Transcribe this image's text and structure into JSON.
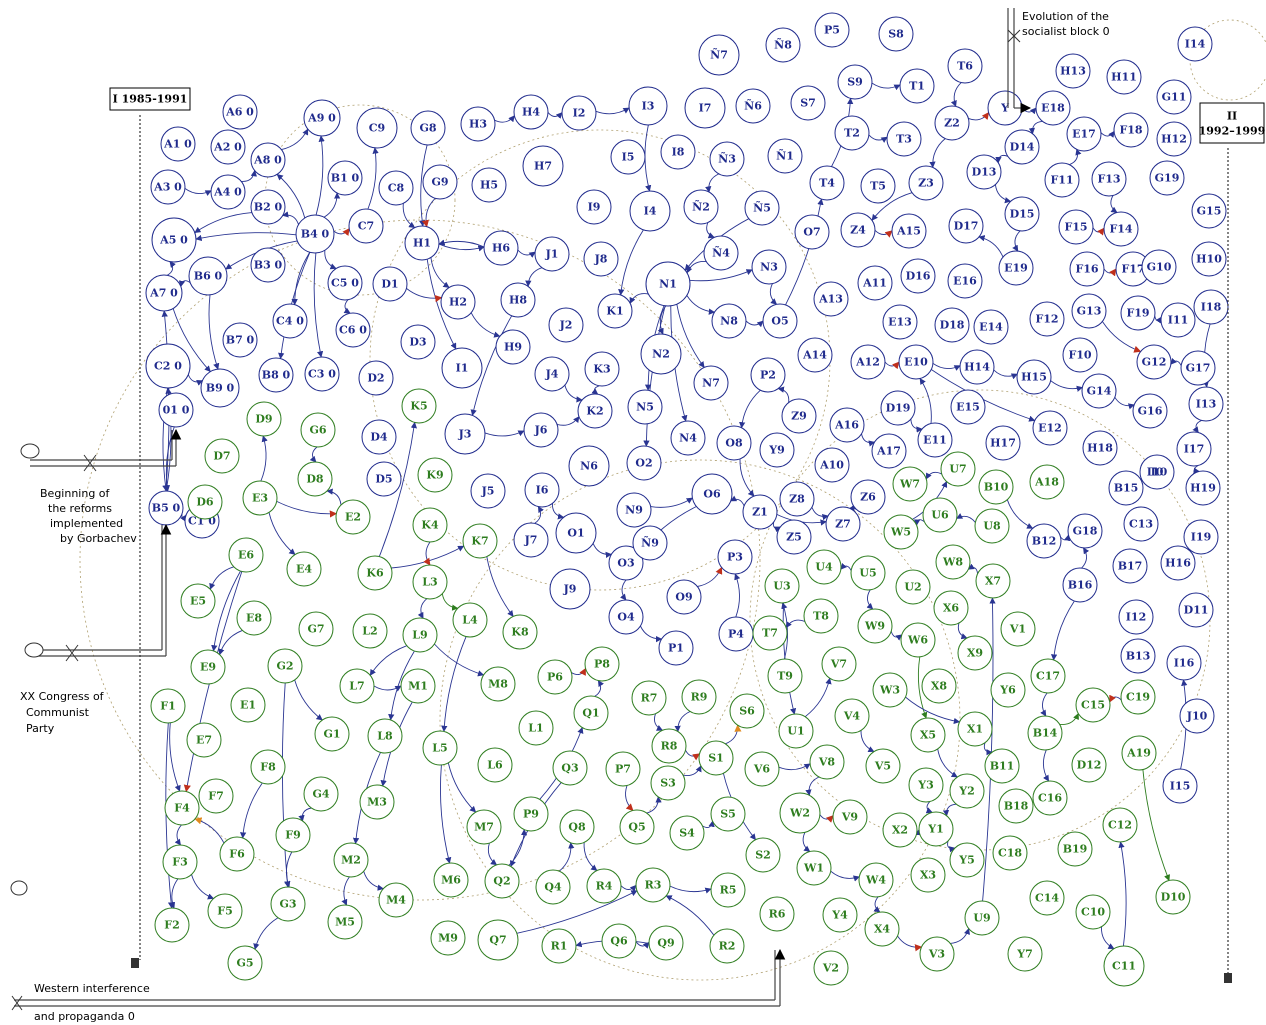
{
  "colors": {
    "blue": "#1f2a8c",
    "green": "#2e7d1f",
    "edgeBlue": "#2a3592",
    "dotted": "#8a7a55"
  },
  "boxes": {
    "period1": "I 1985-1991",
    "period2a": "II",
    "period2b": "1992–1999"
  },
  "captions": {
    "socialist": [
      "Evolution of the",
      "socialist block  0"
    ],
    "gorbachev": [
      "Beginning of",
      "the reforms",
      "implemented",
      "by Gorbachev"
    ],
    "congress": [
      "XX Congress of",
      "Communist",
      "Party"
    ],
    "western": [
      "Western interference",
      "and propaganda  0"
    ]
  },
  "blueNodes": [
    "A1 0",
    "A2 0",
    "A3 0",
    "A4 0",
    "A5 0",
    "A6 0",
    "A7 0",
    "A8 0",
    "A9 0",
    "B1 0",
    "B2 0",
    "B3 0",
    "B4 0",
    "B5 0",
    "B6 0",
    "B7 0",
    "B8 0",
    "B9 0",
    "C1 0",
    "C2 0",
    "C3 0",
    "C4 0",
    "C5 0",
    "C6 0",
    "C7",
    "C8",
    "C9",
    "D1",
    "D2",
    "D3",
    "D4",
    "D5",
    "G8",
    "G9",
    "H1",
    "H2",
    "H3",
    "H4",
    "H5",
    "H6",
    "H7",
    "H8",
    "H9",
    "I1",
    "I2",
    "I3",
    "I4",
    "I5",
    "I6",
    "I7",
    "I8",
    "I9",
    "J1",
    "J2",
    "J3",
    "J4",
    "J5",
    "J6",
    "J7",
    "J8",
    "J9",
    "K1",
    "K2",
    "K3",
    "N1",
    "N2",
    "N3",
    "N4",
    "N5",
    "N6",
    "N7",
    "N8",
    "N9",
    "O1",
    "O2",
    "O3",
    "O4",
    "O5",
    "O6",
    "O7",
    "O8",
    "O9",
    "P1",
    "P2",
    "P3",
    "P4",
    "P5",
    "S7",
    "S8",
    "S9",
    "T1",
    "T2",
    "T3",
    "T4",
    "T5",
    "T6",
    "Y",
    "Y9",
    "Z1",
    "Z2",
    "Z3",
    "Z4",
    "Z5",
    "Z6",
    "Z7",
    "Z8",
    "Z9",
    "Ñ1",
    "Ñ2",
    "Ñ3",
    "Ñ4",
    "Ñ5",
    "Ñ6",
    "Ñ7",
    "Ñ8",
    "Ñ9",
    "A10",
    "A11",
    "A12",
    "A13",
    "A14",
    "A15",
    "A16",
    "A17",
    "D13",
    "D14",
    "D15",
    "D16",
    "D17",
    "D18",
    "D19",
    "E10",
    "E11",
    "E12",
    "E13",
    "E14",
    "E15",
    "E16",
    "E17",
    "E18",
    "E19",
    "F10",
    "F11",
    "F12",
    "F13",
    "F14",
    "F15",
    "F16",
    "F17",
    "F18",
    "F19",
    "G10",
    "G11",
    "G12",
    "G13",
    "G14",
    "G15",
    "G16",
    "G17",
    "G18",
    "G19",
    "H10",
    "H11",
    "H12",
    "H13",
    "H14",
    "H15",
    "H16",
    "H17",
    "H18",
    "H19",
    "I10",
    "I11",
    "I12",
    "I13",
    "I14",
    "I15",
    "I16",
    "I17",
    "I18",
    "I19",
    "J10",
    "B12",
    "B13",
    "B15",
    "B16",
    "B17",
    "C13",
    "D11",
    "I0",
    "01 0"
  ],
  "greenNodes": [
    "D6",
    "D7",
    "D8",
    "D9",
    "E1",
    "E2",
    "E3",
    "E4",
    "E5",
    "E6",
    "E7",
    "E8",
    "E9",
    "F1",
    "F2",
    "F3",
    "F4",
    "F5",
    "F6",
    "F7",
    "F8",
    "F9",
    "G1",
    "G2",
    "G3",
    "G4",
    "G5",
    "G6",
    "G7",
    "K4",
    "K5",
    "K6",
    "K7",
    "K8",
    "K9",
    "L1",
    "L2",
    "L3",
    "L4",
    "L5",
    "L6",
    "L7",
    "L8",
    "L9",
    "M1",
    "M2",
    "M3",
    "M4",
    "M5",
    "M6",
    "M7",
    "M8",
    "M9",
    "P6",
    "P7",
    "P8",
    "P9",
    "Q1",
    "Q2",
    "Q3",
    "Q4",
    "Q5",
    "Q6",
    "Q7",
    "Q8",
    "Q9",
    "R1",
    "R2",
    "R3",
    "R4",
    "R5",
    "R6",
    "R7",
    "R8",
    "R9",
    "S1",
    "S2",
    "S3",
    "S4",
    "S5",
    "S6",
    "T7",
    "T8",
    "T9",
    "U1",
    "U2",
    "U3",
    "U4",
    "U5",
    "U6",
    "U7",
    "U8",
    "U9",
    "V1",
    "V2",
    "V3",
    "V4",
    "V5",
    "V6",
    "V7",
    "V8",
    "V9",
    "W1",
    "W2",
    "W3",
    "W4",
    "W5",
    "W6",
    "W7",
    "W8",
    "W9",
    "X1",
    "X2",
    "X3",
    "X4",
    "X5",
    "X6",
    "X7",
    "X8",
    "X9",
    "Y1",
    "Y2",
    "Y3",
    "Y4",
    "Y5",
    "Y6",
    "Y7",
    "A18",
    "A19",
    "B10",
    "B11",
    "B14",
    "B18",
    "B19",
    "C10",
    "C11",
    "C12",
    "C14",
    "C15",
    "C16",
    "C17",
    "C18",
    "C19",
    "D10",
    "D12"
  ]
}
